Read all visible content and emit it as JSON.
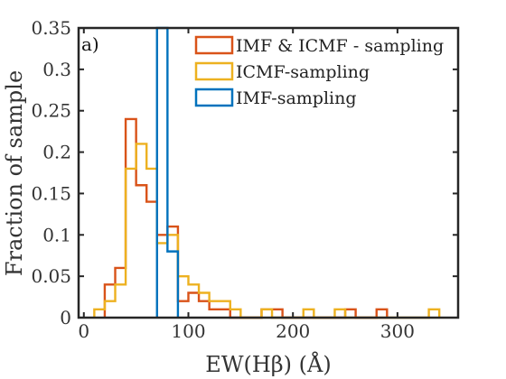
{
  "chart_data": {
    "type": "step-histogram",
    "panel_label": "a)",
    "xlabel": "EW(Hβ)  (Å)",
    "ylabel": "Fraction of sample",
    "xlim": [
      -5,
      358
    ],
    "ylim": [
      0,
      0.35
    ],
    "xticks": [
      {
        "value": 0,
        "label": "0"
      },
      {
        "value": 100,
        "label": "100"
      },
      {
        "value": 200,
        "label": "200"
      },
      {
        "value": 300,
        "label": "300"
      }
    ],
    "yticks": [
      {
        "value": 0,
        "label": "0"
      },
      {
        "value": 0.05,
        "label": "0.05"
      },
      {
        "value": 0.1,
        "label": "0.1"
      },
      {
        "value": 0.15,
        "label": "0.15"
      },
      {
        "value": 0.2,
        "label": "0.2"
      },
      {
        "value": 0.25,
        "label": "0.25"
      },
      {
        "value": 0.3,
        "label": "0.3"
      },
      {
        "value": 0.35,
        "label": "0.35"
      }
    ],
    "grid": false,
    "legend_position": "top-right",
    "series": [
      {
        "name": "IMF & ICMF - sampling",
        "color": "#D95319",
        "bin_width": 10,
        "bin_edges": [
          20,
          30,
          40,
          50,
          60,
          70,
          80,
          90,
          100,
          110,
          120,
          130,
          140,
          150,
          160,
          170,
          180,
          190,
          200,
          210,
          220,
          230,
          240,
          250,
          260,
          270,
          280,
          290
        ],
        "values": [
          0.04,
          0.06,
          0.24,
          0.16,
          0.14,
          0.1,
          0.11,
          0.02,
          0.03,
          0.02,
          0.01,
          0.01,
          0,
          0,
          0,
          0.01,
          0.01,
          0,
          0,
          0,
          0,
          0,
          0,
          0.01,
          0,
          0,
          0.01
        ]
      },
      {
        "name": "ICMF-sampling",
        "color": "#EDB120",
        "bin_width": 10,
        "bin_edges": [
          10,
          20,
          30,
          40,
          50,
          60,
          70,
          80,
          90,
          100,
          110,
          120,
          130,
          140,
          150,
          160,
          170,
          180,
          190,
          200,
          210,
          220,
          230,
          240,
          250,
          260,
          270,
          280,
          290,
          300,
          310,
          320,
          330,
          340
        ],
        "values": [
          0.01,
          0.02,
          0.04,
          0.18,
          0.21,
          0.18,
          0.09,
          0.1,
          0.05,
          0.04,
          0.03,
          0.02,
          0.02,
          0.01,
          0,
          0,
          0.01,
          0,
          0,
          0,
          0.01,
          0,
          0,
          0.01,
          0,
          0,
          0,
          0,
          0,
          0,
          0,
          0,
          0.01
        ]
      },
      {
        "name": "IMF-sampling",
        "color": "#0072BD",
        "bin_width": 10,
        "bin_edges": [
          70,
          80,
          90
        ],
        "values": [
          0.35,
          0.08
        ]
      }
    ]
  }
}
